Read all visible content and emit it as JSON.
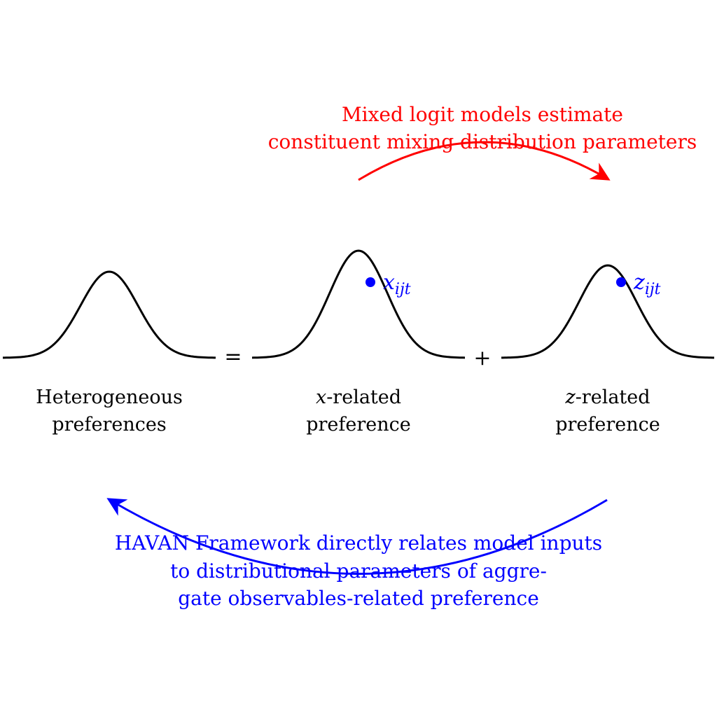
{
  "colors": {
    "curve": "#000000",
    "top_note": "#ff0000",
    "bottom_note": "#0000ff",
    "marker": "#0000ff"
  },
  "operators": {
    "equals": "=",
    "plus": "+"
  },
  "labels": {
    "heterogeneous": {
      "line1": "Heterogeneous",
      "line2": "preferences"
    },
    "x_related": {
      "var": "x",
      "rest": "-related",
      "line2": "preference"
    },
    "z_related": {
      "var": "z",
      "rest": "-related",
      "line2": "preference"
    }
  },
  "markers": {
    "x": {
      "base": "x",
      "subscript": "ijt"
    },
    "z": {
      "base": "z",
      "subscript": "ijt"
    }
  },
  "top_note": {
    "line1": "Mixed logit models estimate",
    "line2": "constituent mixing distribution parameters"
  },
  "bottom_note": {
    "line1": "HAVAN Framework directly relates model inputs",
    "line2": "to distributional parameters of aggre-",
    "line3": "gate observables-related preference"
  }
}
